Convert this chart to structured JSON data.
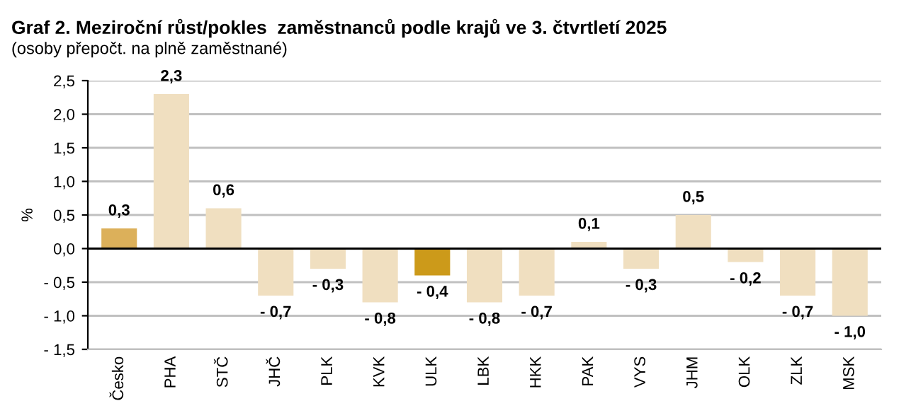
{
  "chart_data": {
    "type": "bar",
    "title": "Graf 2. Meziroční růst/pokles  zaměstnanců podle krajů ve 3. čtvrtletí 2025",
    "subtitle": "(osoby přepočt. na plně zaměstnané)",
    "ylabel": "%",
    "categories": [
      "Česko",
      "PHA",
      "STČ",
      "JHČ",
      "PLK",
      "KVK",
      "ULK",
      "LBK",
      "HKK",
      "PAK",
      "VYS",
      "JHM",
      "OLK",
      "ZLK",
      "MSK"
    ],
    "values": [
      0.3,
      2.3,
      0.6,
      -0.7,
      -0.3,
      -0.8,
      -0.4,
      -0.8,
      -0.7,
      0.1,
      -0.3,
      0.5,
      -0.2,
      -0.7,
      -1.0
    ],
    "colors": [
      "#dcb05a",
      "#f0dfc0",
      "#f0dfc0",
      "#f0dfc0",
      "#f0dfc0",
      "#f0dfc0",
      "#cc9a1a",
      "#f0dfc0",
      "#f0dfc0",
      "#f0dfc0",
      "#f0dfc0",
      "#f0dfc0",
      "#f0dfc0",
      "#f0dfc0",
      "#f0dfc0"
    ],
    "value_labels": [
      "0,3",
      "2,3",
      "0,6",
      "- 0,7",
      "- 0,3",
      "- 0,8",
      "- 0,4",
      "- 0,8",
      "- 0,7",
      "0,1",
      "- 0,3",
      "0,5",
      "- 0,2",
      "- 0,7",
      "- 1,0"
    ],
    "ylim": [
      -1.5,
      2.5
    ],
    "yticks": [
      {
        "value": -1.5,
        "label": "- 1,5"
      },
      {
        "value": -1.0,
        "label": "- 1,0"
      },
      {
        "value": -0.5,
        "label": "- 0,5"
      },
      {
        "value": 0,
        "label": "0,0"
      },
      {
        "value": 0.5,
        "label": "0,5"
      },
      {
        "value": 1.0,
        "label": "1,0"
      },
      {
        "value": 1.5,
        "label": "1,5"
      },
      {
        "value": 2.0,
        "label": "2,0"
      },
      {
        "value": 2.5,
        "label": "2,5"
      }
    ],
    "grid": "y",
    "legend": false
  }
}
